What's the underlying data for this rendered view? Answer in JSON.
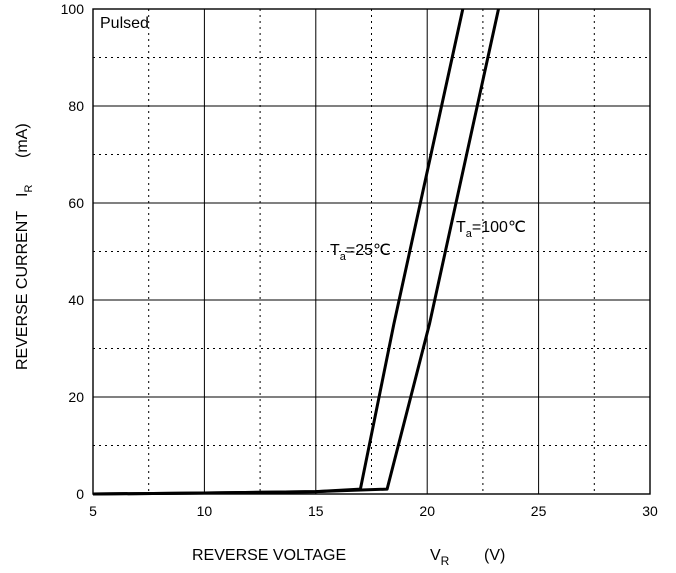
{
  "chart_data": {
    "type": "line",
    "title": "",
    "xlabel": "REVERSE VOLTAGE",
    "xsymbol": "V",
    "xsymbol_sub": "R",
    "xunit": "(V)",
    "ylabel": "REVERSE CURRENT",
    "ysymbol": "I",
    "ysymbol_sub": "R",
    "yunit": "(mA)",
    "xlim": [
      5,
      30
    ],
    "ylim": [
      0,
      100
    ],
    "xticks": [
      5,
      10,
      15,
      20,
      25,
      30
    ],
    "yticks": [
      0,
      20,
      40,
      60,
      80,
      100
    ],
    "grid": true,
    "annotation": "Pulsed",
    "series": [
      {
        "name": "Ta=25°C",
        "label_main": "T",
        "label_sub": "a",
        "label_rest": "=25℃",
        "x": [
          5,
          10,
          15,
          17,
          18.5,
          21.6
        ],
        "y": [
          0,
          0.2,
          0.5,
          1,
          35,
          100
        ]
      },
      {
        "name": "Ta=100°C",
        "label_main": "T",
        "label_sub": "a",
        "label_rest": "=100℃",
        "x": [
          5,
          10,
          15,
          18.2,
          20.1,
          23.2
        ],
        "y": [
          0,
          0.2,
          0.5,
          1,
          35,
          100
        ]
      }
    ]
  }
}
